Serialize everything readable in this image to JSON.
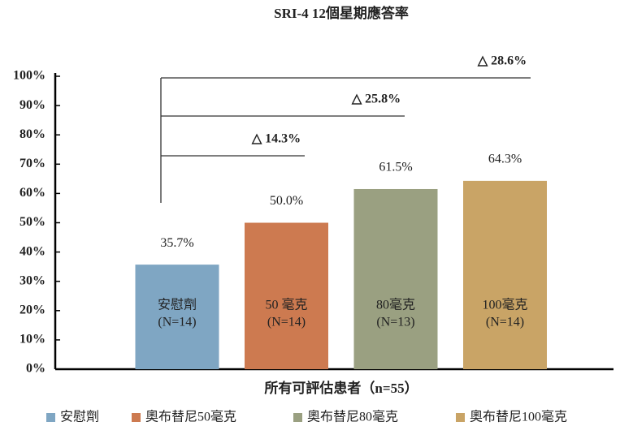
{
  "chart_data": {
    "type": "bar",
    "title": "SRI-4 12個星期應答率",
    "x_label": "所有可評估患者（n=55）",
    "categories": [
      "安慰劑",
      "50 毫克",
      "80毫克",
      "100毫克"
    ],
    "sample_labels": [
      "(N=14)",
      "(N=14)",
      "(N=13)",
      "(N=14)"
    ],
    "values": [
      35.7,
      50.0,
      61.5,
      64.3
    ],
    "value_labels": [
      "35.7%",
      "50.0%",
      "61.5%",
      "64.3%"
    ],
    "colors": [
      "#7fa6c3",
      "#cd7a50",
      "#9aa081",
      "#c9a466"
    ],
    "legend": [
      "安慰劑",
      "奧布替尼50毫克",
      "奧布替尼80毫克",
      "奧布替尼100毫克"
    ],
    "annotations": [
      "△ 14.3%",
      "△ 25.8%",
      "△ 28.6%"
    ],
    "ylim": [
      0,
      100
    ],
    "yticks": [
      {
        "value": 0,
        "label": "0%"
      },
      {
        "value": 10,
        "label": "10%"
      },
      {
        "value": 20,
        "label": "20%"
      },
      {
        "value": 30,
        "label": "30%"
      },
      {
        "value": 40,
        "label": "40%"
      },
      {
        "value": 50,
        "label": "50%"
      },
      {
        "value": 60,
        "label": "60%"
      },
      {
        "value": 70,
        "label": "70%"
      },
      {
        "value": 80,
        "label": "80%"
      },
      {
        "value": 90,
        "label": "90%"
      },
      {
        "value": 100,
        "label": "100%"
      }
    ],
    "grid": false
  }
}
